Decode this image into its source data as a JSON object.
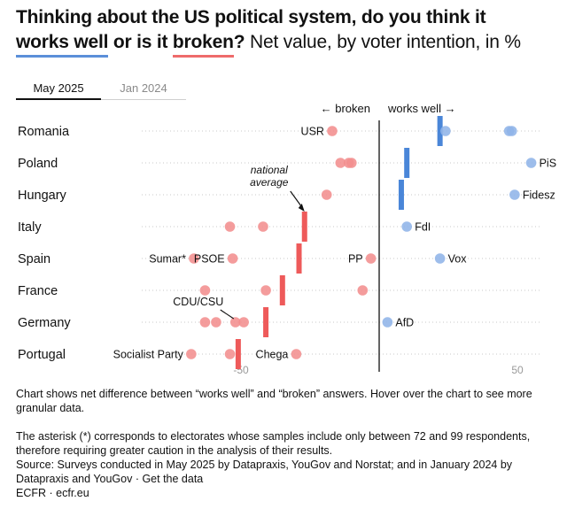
{
  "title": {
    "part1": "Thinking about the US political system, do you think it ",
    "works_well": "works well",
    "part2": " or is it ",
    "broken": "broken",
    "part3": "?",
    "subtitle": " Net value, by voter intention, in %"
  },
  "tabs": [
    {
      "label": "May 2025",
      "active": true
    },
    {
      "label": "Jan 2024",
      "active": false
    }
  ],
  "notes": {
    "description": "Chart shows net difference between “works well” and “broken” answers. Hover over the chart to see more granular data.",
    "asterisk": "The asterisk (*) corresponds to electorates whose samples include only between 72 and 99 respondents, therefore requiring greater caution in the analysis of their results.",
    "source_prefix": "Source: Surveys conducted in May 2025 by Datapraxis, YouGov and Norstat; and in January 2024 by Datapraxis and YouGov · ",
    "get_data": "Get the data",
    "credit_prefix": "ECFR · ",
    "credit_link": "ecfr.eu"
  },
  "chart_data": {
    "type": "scatter",
    "direction_left": "← broken",
    "direction_right": "works well →",
    "xlim": [
      -75,
      55
    ],
    "xticks": [
      {
        "value": -50,
        "label": "-50"
      },
      {
        "value": 50,
        "label": "50"
      }
    ],
    "zero_line": 0,
    "grid": "dotted horizontal rows",
    "colors": {
      "negative": "#f28e8e",
      "positive": "#8fb4e8",
      "avg_negative": "#ee5a5a",
      "avg_positive": "#4a86d8"
    },
    "avg_annotation": {
      "lines": [
        "national",
        "average"
      ],
      "country": "Italy"
    },
    "countries": [
      {
        "name": "Romania",
        "average": 22,
        "points": [
          {
            "value": -17,
            "label": "USR"
          },
          {
            "value": 24,
            "label": ""
          },
          {
            "value": 47,
            "label": ""
          },
          {
            "value": 48,
            "label": ""
          }
        ]
      },
      {
        "name": "Poland",
        "average": 10,
        "points": [
          {
            "value": -14,
            "label": ""
          },
          {
            "value": -11,
            "label": ""
          },
          {
            "value": -10,
            "label": ""
          },
          {
            "value": 55,
            "label": "PiS"
          }
        ]
      },
      {
        "name": "Hungary",
        "average": 8,
        "points": [
          {
            "value": -19,
            "label": ""
          },
          {
            "value": 49,
            "label": "Fidesz"
          }
        ]
      },
      {
        "name": "Italy",
        "average": -27,
        "points": [
          {
            "value": -54,
            "label": ""
          },
          {
            "value": -42,
            "label": ""
          },
          {
            "value": 10,
            "label": "FdI"
          }
        ]
      },
      {
        "name": "Spain",
        "average": -29,
        "points": [
          {
            "value": -67,
            "label": "Sumar*"
          },
          {
            "value": -53,
            "label": "PSOE"
          },
          {
            "value": -3,
            "label": "PP"
          },
          {
            "value": 22,
            "label": "Vox"
          }
        ]
      },
      {
        "name": "France",
        "average": -35,
        "points": [
          {
            "value": -63,
            "label": ""
          },
          {
            "value": -41,
            "label": ""
          },
          {
            "value": -6,
            "label": ""
          }
        ]
      },
      {
        "name": "Germany",
        "average": -41,
        "points": [
          {
            "value": -63,
            "label": ""
          },
          {
            "value": -59,
            "label": ""
          },
          {
            "value": -52,
            "label": ""
          },
          {
            "value": -49,
            "label": ""
          },
          {
            "value": 3,
            "label": "AfD"
          }
        ]
      },
      {
        "name": "Portugal",
        "average": -51,
        "points": [
          {
            "value": -68,
            "label": "Socialist Party"
          },
          {
            "value": -54,
            "label": ""
          },
          {
            "value": -30,
            "label": "Chega"
          }
        ]
      }
    ],
    "callouts": [
      {
        "label": "CDU/CSU",
        "country": "Germany",
        "value": -52
      }
    ]
  }
}
